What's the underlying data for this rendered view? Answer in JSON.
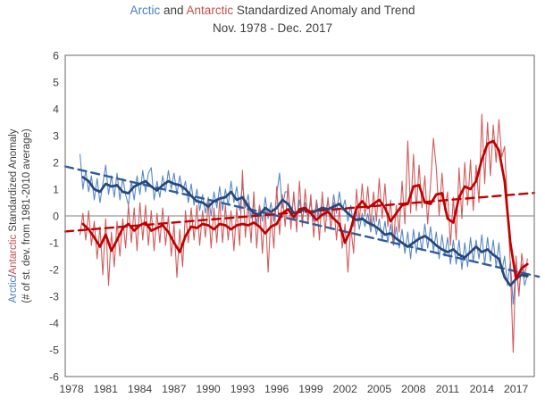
{
  "title": {
    "arctic": "Arctic",
    "and": " and ",
    "antarctic": "Antarctic",
    "rest": " Standardized Anomaly and Trend",
    "subtitle": "Nov. 1978 - Dec. 2017"
  },
  "y_axis_label": {
    "arctic": "Arctic",
    "slash": "/",
    "antarctic": "Antarctic",
    "rest": " Standardized Anomaly",
    "line2": "(# of st. dev. from 1981-2010 average)"
  },
  "colors": {
    "title_blue": "#4a7ebd",
    "title_red": "#c0504d",
    "text_gray": "#404040",
    "axis_gray": "#808080",
    "arctic_thin": "#5b89c4",
    "arctic_thick": "#25477b",
    "arctic_trend": "#2f5b9c",
    "antarctic_thin": "#d05c5c",
    "antarctic_thick": "#c00000",
    "antarctic_trend": "#c00000"
  },
  "chart_data": {
    "type": "line",
    "title": "Arctic and Antarctic Standardized Anomaly and Trend, Nov. 1978 - Dec. 2017",
    "ylabel": "Arctic/Antarctic Standardized Anomaly (# of st. dev. from 1981-2010 average)",
    "xlim": [
      1977.45,
      2018.6
    ],
    "ylim": [
      -6,
      6
    ],
    "grid": "zero-line-only",
    "legend": "none",
    "x_ticks": [
      1978,
      1981,
      1984,
      1987,
      1990,
      1993,
      1996,
      1999,
      2002,
      2005,
      2008,
      2011,
      2014,
      2017
    ],
    "y_ticks": [
      6,
      5,
      4,
      3,
      2,
      1,
      0,
      -1,
      -2,
      -3,
      -4,
      -5,
      -6
    ],
    "series": [
      {
        "id": "arctic-monthly-line",
        "name": "Arctic monthly standardized anomaly",
        "color": "#5b89c4",
        "width": 1.1,
        "dash": null,
        "x_start": 1978.75,
        "dx": 0.25,
        "values": [
          2.3,
          1.0,
          1.7,
          0.9,
          1.5,
          0.6,
          1.4,
          0.5,
          1.2,
          1.9,
          0.8,
          1.5,
          0.7,
          1.6,
          0.6,
          1.4,
          0.8,
          0.4,
          1.3,
          0.6,
          1.5,
          0.8,
          1.7,
          0.9,
          1.6,
          1.8,
          0.6,
          1.3,
          0.7,
          1.5,
          0.9,
          1.7,
          1.0,
          1.6,
          0.8,
          1.5,
          0.9,
          1.3,
          0.5,
          1.2,
          0.4,
          1.0,
          0.2,
          0.8,
          0.1,
          0.7,
          0.0,
          0.9,
          0.3,
          1.1,
          0.2,
          1.0,
          0.4,
          1.3,
          0.5,
          1.1,
          0.2,
          1.2,
          0.3,
          0.8,
          -0.1,
          0.5,
          -0.3,
          0.4,
          -0.2,
          0.7,
          -0.1,
          0.5,
          -0.2,
          0.8,
          1.6,
          0.3,
          0.9,
          0.9,
          0.0,
          0.7,
          -0.2,
          0.6,
          -0.1,
          0.5,
          0.0,
          0.5,
          -0.2,
          0.6,
          -0.1,
          0.7,
          0.0,
          0.6,
          -0.1,
          0.8,
          0.1,
          0.9,
          0.2,
          0.6,
          -0.2,
          0.4,
          -0.4,
          0.2,
          -0.5,
          0.1,
          -0.4,
          0.1,
          -0.6,
          0.0,
          -0.7,
          -0.1,
          -0.9,
          -0.2,
          -1.0,
          -0.3,
          -1.1,
          -0.4,
          -1.2,
          -0.5,
          -1.4,
          -0.6,
          -1.6,
          -0.5,
          -1.4,
          -0.6,
          -1.3,
          -0.3,
          -1.2,
          -0.4,
          -1.3,
          -0.6,
          -1.6,
          -0.7,
          -1.5,
          -0.8,
          -1.8,
          -0.9,
          -1.8,
          -0.9,
          -2.0,
          -1.0,
          -1.9,
          -0.8,
          -1.7,
          -0.9,
          -1.6,
          -0.7,
          -1.8,
          -0.8,
          -1.7,
          -0.9,
          -1.9,
          -1.0,
          -2.1,
          -1.5,
          -2.6,
          -1.7,
          -3.3,
          -1.9,
          -2.9,
          -1.8,
          -2.6,
          -2.2
        ]
      },
      {
        "id": "antarctic-monthly-line",
        "name": "Antarctic monthly standardized anomaly",
        "color": "#d05c5c",
        "width": 1.1,
        "dash": null,
        "x_start": 1978.75,
        "dx": 0.25,
        "values": [
          -0.7,
          0.1,
          -0.9,
          0.2,
          -1.1,
          -0.2,
          -1.6,
          -0.4,
          -2.2,
          -0.1,
          -2.6,
          -0.6,
          -1.9,
          -0.2,
          -1.5,
          -0.1,
          -1.2,
          0.4,
          -1.0,
          0.3,
          -1.3,
          0.5,
          -0.9,
          0.4,
          -1.1,
          0.2,
          -1.3,
          0.1,
          -1.0,
          0.3,
          -1.1,
          0.0,
          -1.5,
          -0.3,
          -2.3,
          -0.5,
          -1.9,
          0.2,
          -1.0,
          0.3,
          -0.9,
          0.4,
          -1.1,
          0.2,
          -0.8,
          0.5,
          -1.2,
          0.3,
          -1.0,
          0.6,
          -1.0,
          0.4,
          -0.9,
          0.2,
          -1.3,
          0.3,
          -1.1,
          1.7,
          -0.8,
          0.5,
          -1.0,
          0.9,
          -1.2,
          0.4,
          -1.4,
          0.3,
          -2.1,
          0.1,
          -1.2,
          1.1,
          -0.7,
          0.8,
          -0.4,
          1.2,
          -0.5,
          0.9,
          -0.6,
          1.3,
          -0.4,
          1.0,
          -0.3,
          0.8,
          -0.8,
          0.6,
          -0.9,
          0.9,
          -0.6,
          0.7,
          -0.5,
          0.5,
          -0.9,
          0.3,
          -1.2,
          -0.3,
          -2.1,
          -0.4,
          -1.4,
          1.0,
          -0.2,
          1.2,
          0.0,
          1.1,
          -0.4,
          0.9,
          -0.2,
          1.4,
          -0.1,
          1.2,
          -0.4,
          0.6,
          -1.0,
          0.4,
          -0.6,
          1.3,
          -0.3,
          2.8,
          0.1,
          2.3,
          0.2,
          1.9,
          0.3,
          1.5,
          -0.3,
          1.2,
          2.9,
          1.8,
          0.0,
          1.6,
          0.2,
          0.9,
          -1.1,
          0.7,
          -0.9,
          1.8,
          -0.1,
          2.0,
          0.4,
          2.1,
          0.2,
          1.9,
          0.5,
          3.8,
          1.2,
          3.5,
          1.5,
          3.4,
          2.0,
          3.6,
          2.2,
          2.6,
          0.4,
          -1.8,
          -5.1,
          -1.5,
          -3.0,
          -1.4,
          -2.3,
          -1.6
        ]
      },
      {
        "id": "arctic-trend-line",
        "name": "Arctic linear trend",
        "color": "#2f5b9c",
        "width": 2.4,
        "dash": "9 6",
        "x": [
          1977.45,
          2019.0
        ],
        "y": [
          1.85,
          -2.27
        ]
      },
      {
        "id": "antarctic-trend-line",
        "name": "Antarctic linear trend",
        "color": "#c00000",
        "width": 2.4,
        "dash": "9 6",
        "x": [
          1977.45,
          2018.6
        ],
        "y": [
          -0.58,
          0.86
        ]
      },
      {
        "id": "arctic-smoothed-line",
        "name": "Arctic 12-month running mean",
        "color": "#25477b",
        "width": 2.7,
        "dash": null,
        "x_start": 1979.0,
        "dx": 0.5,
        "values": [
          1.45,
          1.3,
          1.0,
          0.9,
          1.2,
          1.1,
          1.15,
          0.9,
          0.85,
          1.1,
          1.2,
          1.3,
          1.1,
          0.95,
          1.15,
          1.3,
          1.2,
          1.15,
          1.0,
          0.75,
          0.55,
          0.5,
          0.35,
          0.55,
          0.65,
          0.7,
          0.9,
          0.6,
          0.7,
          0.35,
          0.1,
          0.05,
          0.3,
          0.15,
          0.3,
          0.6,
          0.45,
          0.1,
          0.15,
          0.25,
          0.1,
          0.2,
          0.3,
          0.25,
          0.35,
          0.45,
          0.2,
          0.0,
          -0.15,
          -0.1,
          -0.25,
          -0.35,
          -0.5,
          -0.7,
          -0.65,
          -0.85,
          -1.0,
          -1.15,
          -1.0,
          -0.85,
          -0.75,
          -0.9,
          -1.1,
          -1.25,
          -1.35,
          -1.25,
          -1.45,
          -1.55,
          -1.35,
          -1.15,
          -1.35,
          -1.25,
          -1.45,
          -1.6,
          -2.3,
          -2.6,
          -2.35,
          -2.2,
          -2.25
        ]
      },
      {
        "id": "antarctic-smoothed-line",
        "name": "Antarctic 12-month running mean",
        "color": "#c00000",
        "width": 2.7,
        "dash": null,
        "x_start": 1979.0,
        "dx": 0.5,
        "values": [
          -0.3,
          -0.5,
          -0.8,
          -1.15,
          -0.7,
          -1.3,
          -0.9,
          -0.45,
          -0.3,
          -0.55,
          -0.35,
          -0.25,
          -0.55,
          -0.45,
          -0.35,
          -0.6,
          -1.0,
          -1.35,
          -0.75,
          -0.4,
          -0.45,
          -0.3,
          -0.35,
          -0.5,
          -0.3,
          -0.35,
          -0.5,
          -0.35,
          -0.3,
          -0.35,
          -0.25,
          -0.4,
          -0.65,
          -0.4,
          -0.3,
          0.1,
          0.25,
          -0.05,
          0.25,
          0.3,
          0.1,
          -0.15,
          0.05,
          0.15,
          -0.1,
          -0.3,
          -1.0,
          -0.5,
          0.3,
          0.55,
          0.3,
          0.45,
          0.6,
          0.3,
          -0.2,
          0.1,
          0.4,
          0.45,
          1.1,
          1.15,
          0.5,
          0.45,
          0.8,
          0.85,
          -0.1,
          -0.25,
          0.7,
          1.1,
          1.0,
          1.3,
          2.1,
          2.7,
          2.8,
          2.45,
          1.3,
          -1.0,
          -2.35,
          -1.95,
          -1.8
        ]
      }
    ]
  }
}
